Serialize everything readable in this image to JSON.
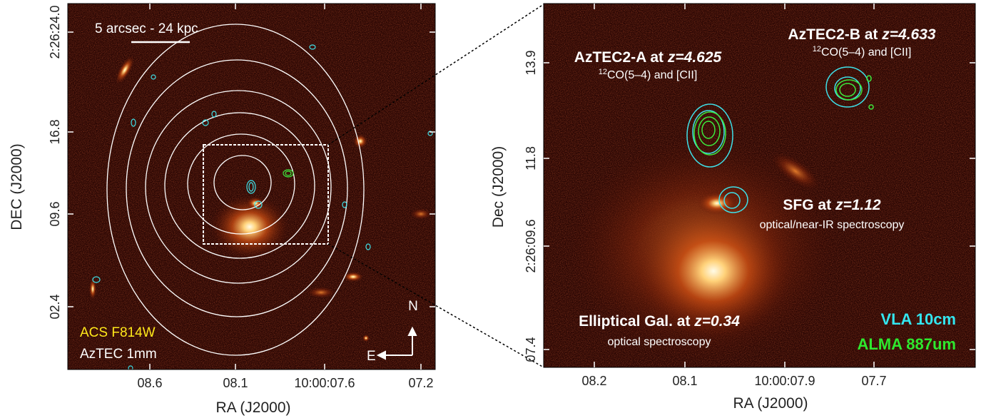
{
  "left_panel": {
    "x_axis_label": "RA (J2000)",
    "y_axis_label": "DEC (J2000)",
    "x_ticks": [
      "08.6",
      "08.1",
      "10:00:07.6",
      "07.2"
    ],
    "y_ticks": [
      "2:26:24.0",
      "16.8",
      "09.6",
      "02.4"
    ],
    "scale_bar": "5 arcsec - 24 kpc",
    "legend": [
      "ACS F814W",
      "AzTEC 1mm"
    ],
    "compass": {
      "north": "N",
      "east": "E"
    }
  },
  "right_panel": {
    "x_axis_label": "RA (J2000)",
    "y_axis_label": "Dec (J2000)",
    "x_ticks": [
      "08.2",
      "08.1",
      "10:00:07.9",
      "07.7"
    ],
    "y_ticks": [
      "13.9",
      "11.8",
      "2:26:09.6",
      "07.4"
    ],
    "sources": [
      {
        "name": "AzTEC2-A at ",
        "redshift": "z=4.625",
        "isotope": "12",
        "lines": "CO(5–4)  and [CII]"
      },
      {
        "name": "AzTEC2-B at ",
        "redshift": "z=4.633",
        "isotope": "12",
        "lines": "CO(5–4) and [CII]"
      },
      {
        "name": "SFG at ",
        "redshift": "z=1.12",
        "note": "optical/near-IR spectroscopy"
      },
      {
        "name": "Elliptical Gal. at ",
        "redshift": "z=0.34",
        "note": "optical spectroscopy"
      }
    ],
    "legend": [
      "VLA 10cm",
      "ALMA 887um"
    ]
  }
}
